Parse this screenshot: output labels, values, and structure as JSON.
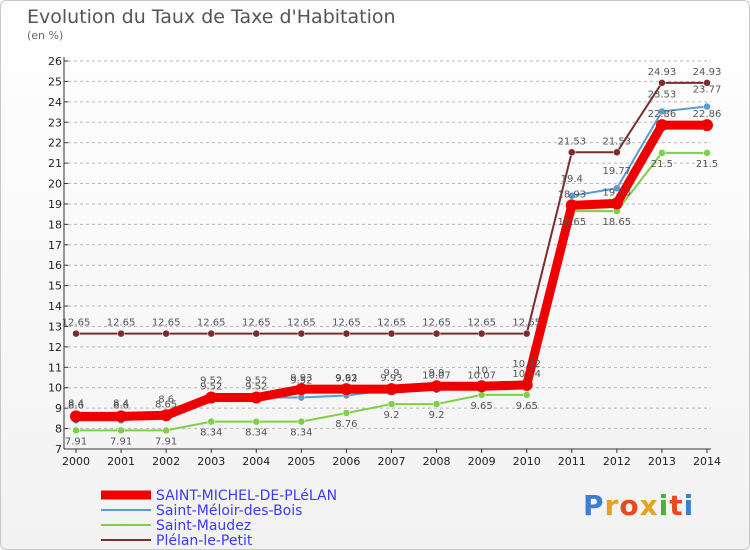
{
  "header": {
    "title": "Evolution du Taux de Taxe d'Habitation",
    "subtitle": "(en %)"
  },
  "logo": {
    "text": "Proxiti",
    "colors": [
      "#3a7fd5",
      "#e8a020",
      "#e84a20",
      "#e8a020",
      "#4fb030",
      "#e84a20",
      "#3a7fd5"
    ]
  },
  "colors": {
    "grid": "#b8b8b8",
    "axis": "#333333",
    "label": "#555555"
  },
  "chart_data": {
    "type": "line",
    "title": "Evolution du Taux de Taxe d'Habitation",
    "subtitle": "(en %)",
    "xlabel": "",
    "ylabel": "",
    "ylim": [
      7,
      26
    ],
    "yticks": [
      7,
      8,
      9,
      10,
      11,
      12,
      13,
      14,
      15,
      16,
      17,
      18,
      19,
      20,
      21,
      22,
      23,
      24,
      25,
      26
    ],
    "x": [
      "2000",
      "2001",
      "2002",
      "2003",
      "2004",
      "2005",
      "2006",
      "2007",
      "2008",
      "2009",
      "2010",
      "2011",
      "2012",
      "2013",
      "2014"
    ],
    "grid": "horizontal-dashed",
    "legend": "bottom-left",
    "series": [
      {
        "name": "SAINT-MICHEL-DE-PLéLAN",
        "color": "#ee0000",
        "width": 9,
        "values": [
          8.6,
          8.6,
          8.65,
          9.52,
          9.52,
          9.93,
          9.93,
          9.93,
          10.07,
          10.07,
          10.14,
          18.93,
          19.03,
          22.86,
          22.86
        ],
        "labels": [
          "8.6",
          "8.6",
          "8.65",
          "9.52",
          "9.52",
          "9.93",
          "9.93",
          "9.93",
          "10.07",
          "10.07",
          "10.14",
          "18.93",
          "19.03",
          "22.86",
          "22.86"
        ]
      },
      {
        "name": "Saint-Méloir-des-Bois",
        "color": "#5b9bd5",
        "width": 2,
        "values": [
          8.4,
          8.4,
          8.6,
          9.52,
          9.52,
          9.52,
          9.62,
          9.9,
          9.9,
          10.0,
          10.32,
          19.4,
          19.77,
          23.53,
          23.77
        ],
        "labels": [
          "8.4",
          "8.4",
          "8.6",
          "9.52",
          "9.52",
          "9.52",
          "9.62",
          "9.9",
          "9.9",
          "10",
          "10.32",
          "19.4",
          "19.77",
          "23.53",
          "23.77"
        ]
      },
      {
        "name": "Saint-Maudez",
        "color": "#7ed047",
        "width": 2,
        "values": [
          7.91,
          7.91,
          7.91,
          8.34,
          8.34,
          8.34,
          8.76,
          9.2,
          9.2,
          9.65,
          9.65,
          18.65,
          18.65,
          21.5,
          21.5
        ],
        "labels": [
          "7.91",
          "7.91",
          "7.91",
          "8.34",
          "8.34",
          "8.34",
          "8.76",
          "9.2",
          "9.2",
          "9.65",
          "9.65",
          "18.65",
          "18.65",
          "21.5",
          "21.5"
        ]
      },
      {
        "name": "Plélan-le-Petit",
        "color": "#7b2d2d",
        "width": 2,
        "values": [
          12.65,
          12.65,
          12.65,
          12.65,
          12.65,
          12.65,
          12.65,
          12.65,
          12.65,
          12.65,
          12.65,
          21.53,
          21.53,
          24.93,
          24.93
        ],
        "labels": [
          "12.65",
          "12.65",
          "12.65",
          "12.65",
          "12.65",
          "12.65",
          "12.65",
          "12.65",
          "12.65",
          "12.65",
          "12.65",
          "21.53",
          "21.53",
          "24.93",
          "24.93"
        ]
      }
    ]
  }
}
